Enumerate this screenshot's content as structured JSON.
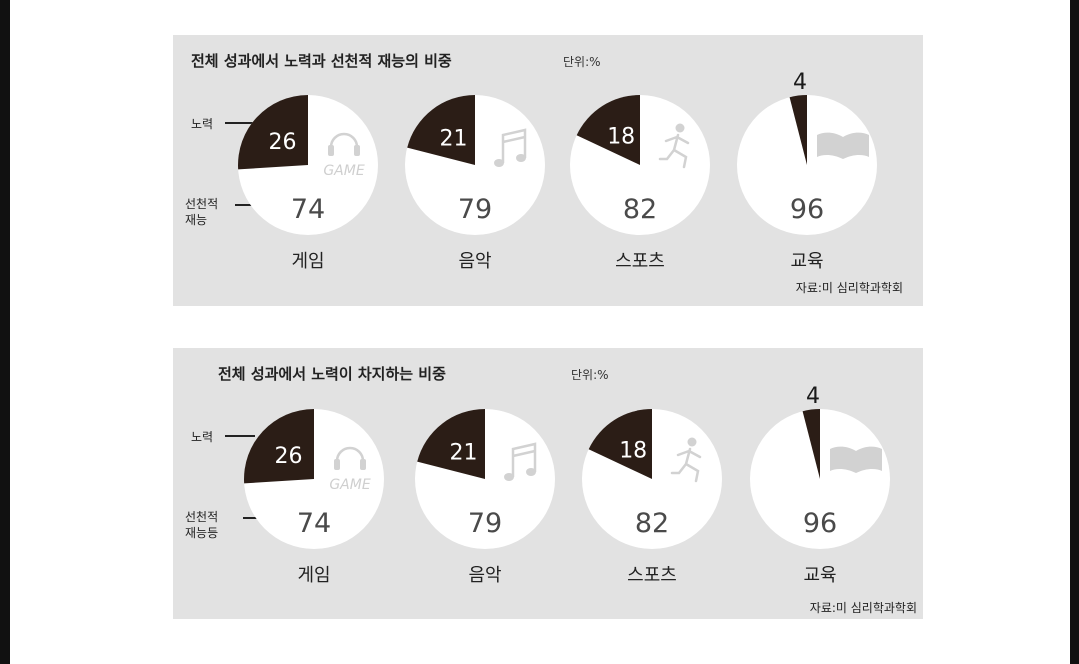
{
  "panels": [
    {
      "title": "전체 성과에서 노력과 선천적 재능의 비중",
      "unit": "단위:%",
      "legend": {
        "effort": "노력",
        "talent_line1": "선천적",
        "talent_line2": "재능"
      },
      "source": "자료:미 심리학과학회"
    },
    {
      "title": "전체 성과에서 노력이 차지하는 비중",
      "unit": "단위:%",
      "legend": {
        "effort": "노력",
        "talent_line1": "선천적",
        "talent_line2": "재능등"
      },
      "source": "자료:미 심리학과학회"
    }
  ],
  "chart_data": [
    {
      "type": "pie",
      "title": "전체 성과에서 노력과 선천적 재능의 비중",
      "unit": "단위:%",
      "categories": [
        "게임",
        "음악",
        "스포츠",
        "교육"
      ],
      "series": [
        {
          "name": "노력",
          "values": [
            26,
            21,
            18,
            4
          ]
        },
        {
          "name": "선천적 재능",
          "values": [
            74,
            79,
            82,
            96
          ]
        }
      ],
      "icons": [
        "headphones-game-icon",
        "music-note-icon",
        "runner-icon",
        "book-icon"
      ],
      "colors": {
        "effort": "#2b1d16",
        "talent": "#ffffff",
        "background": "#e2e2e2"
      },
      "source": "자료:미 심리학과학회"
    },
    {
      "type": "pie",
      "title": "전체 성과에서 노력이 차지하는 비중",
      "unit": "단위:%",
      "categories": [
        "게임",
        "음악",
        "스포츠",
        "교육"
      ],
      "series": [
        {
          "name": "노력",
          "values": [
            26,
            21,
            18,
            4
          ]
        },
        {
          "name": "선천적 재능등",
          "values": [
            74,
            79,
            82,
            96
          ]
        }
      ],
      "icons": [
        "headphones-game-icon",
        "music-note-icon",
        "runner-icon",
        "book-icon"
      ],
      "colors": {
        "effort": "#2b1d16",
        "talent": "#ffffff",
        "background": "#e2e2e2"
      },
      "source": "자료:미 심리학과학회"
    }
  ],
  "icon_text": {
    "game": "GAME"
  }
}
